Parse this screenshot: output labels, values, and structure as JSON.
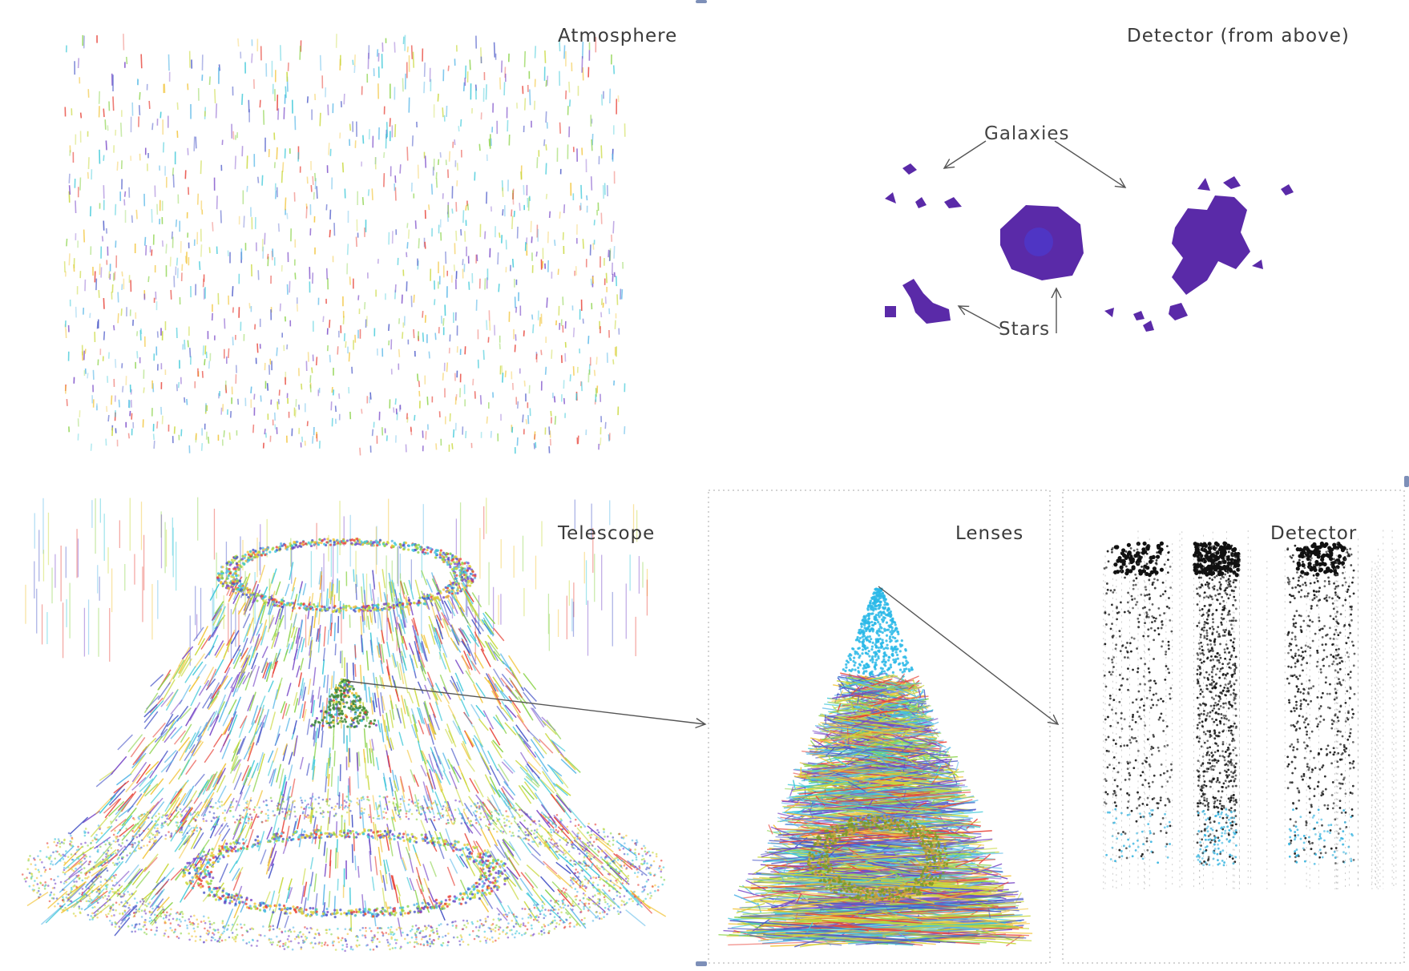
{
  "panels": {
    "atmosphere": "Atmosphere",
    "detector_above": "Detector (from above)",
    "telescope": "Telescope",
    "lenses": "Lenses",
    "detector": "Detector"
  },
  "annotations": {
    "galaxies": "Galaxies",
    "stars": "Stars"
  },
  "colors": {
    "ray_palette": [
      "#f2c438",
      "#8bd34a",
      "#3cc8d8",
      "#4a58c8",
      "#e8443a",
      "#5ab8e8",
      "#c8d83a",
      "#7a4ac8"
    ],
    "detector_blob": "#5a2aa8",
    "detector_core": "#4a3ad0",
    "lens_cone": "#2ab8e8",
    "detector_points": "#111111",
    "detector_fade": "#37b4e0"
  }
}
